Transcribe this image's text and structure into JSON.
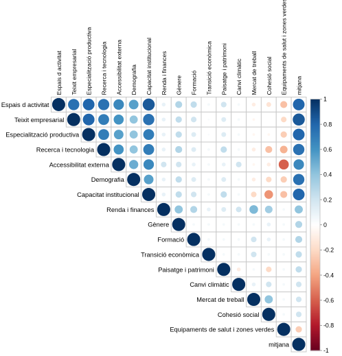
{
  "chart_data": {
    "type": "correlation-matrix",
    "layout": "upper-triangle",
    "glyph": "circle",
    "variables": [
      "Espais d activitat",
      "Teixit empresarial",
      "Especialització productiva",
      "Recerca i tecnologia",
      "Accessibilitat externa",
      "Demografia",
      "Capacitat institucional",
      "Renda i finances",
      "Gènere",
      "Formació",
      "Transició econòmica",
      "Paisatge i patrimoni",
      "Canvi climàtic",
      "Mercat de treball",
      "Cohesió social",
      "Equipaments de salut i zones verdes",
      "mitjana"
    ],
    "matrix": [
      [
        1.0,
        0.75,
        0.8,
        0.75,
        0.65,
        0.55,
        0.85,
        0.1,
        0.3,
        0.25,
        0.05,
        0.2,
        0.05,
        -0.1,
        -0.15,
        -0.3,
        0.8
      ],
      [
        null,
        1.0,
        0.8,
        0.7,
        0.6,
        0.4,
        0.75,
        0.1,
        0.25,
        0.2,
        0.03,
        0.15,
        0.05,
        -0.05,
        0.0,
        -0.2,
        0.85
      ],
      [
        null,
        null,
        1.0,
        0.7,
        0.55,
        0.4,
        0.7,
        0.1,
        0.25,
        0.15,
        0.03,
        0.15,
        0.05,
        -0.05,
        -0.05,
        -0.25,
        0.8
      ],
      [
        null,
        null,
        null,
        1.0,
        0.6,
        0.4,
        0.7,
        0.1,
        0.3,
        0.15,
        0.05,
        0.25,
        0.05,
        -0.1,
        -0.3,
        -0.35,
        0.75
      ],
      [
        null,
        null,
        null,
        null,
        1.0,
        0.5,
        0.65,
        0.2,
        0.2,
        0.1,
        0.05,
        0.1,
        0.2,
        -0.05,
        -0.1,
        -0.6,
        0.65
      ],
      [
        null,
        null,
        null,
        null,
        null,
        1.0,
        0.55,
        0.1,
        0.25,
        0.15,
        0.05,
        0.15,
        0.05,
        -0.1,
        -0.2,
        -0.25,
        0.75
      ],
      [
        null,
        null,
        null,
        null,
        null,
        null,
        1.0,
        0.1,
        0.25,
        0.2,
        0.05,
        0.25,
        0.05,
        -0.2,
        -0.45,
        -0.3,
        0.8
      ],
      [
        null,
        null,
        null,
        null,
        null,
        null,
        null,
        1.0,
        0.4,
        0.3,
        0.1,
        0.15,
        0.2,
        0.45,
        0.35,
        0.05,
        0.4
      ],
      [
        null,
        null,
        null,
        null,
        null,
        null,
        null,
        null,
        1.0,
        0.05,
        0.05,
        0.05,
        0.05,
        0.05,
        0.1,
        0.05,
        0.3
      ],
      [
        null,
        null,
        null,
        null,
        null,
        null,
        null,
        null,
        null,
        1.0,
        0.05,
        0.05,
        0.05,
        0.2,
        0.1,
        0.05,
        0.3
      ],
      [
        null,
        null,
        null,
        null,
        null,
        null,
        null,
        null,
        null,
        null,
        1.0,
        0.05,
        0.05,
        0.2,
        0.05,
        0.05,
        0.25
      ],
      [
        null,
        null,
        null,
        null,
        null,
        null,
        null,
        null,
        null,
        null,
        null,
        1.0,
        -0.1,
        0.05,
        -0.2,
        0.05,
        0.25
      ],
      [
        null,
        null,
        null,
        null,
        null,
        null,
        null,
        null,
        null,
        null,
        null,
        null,
        1.0,
        0.1,
        0.2,
        0.05,
        0.2
      ],
      [
        null,
        null,
        null,
        null,
        null,
        null,
        null,
        null,
        null,
        null,
        null,
        null,
        null,
        1.0,
        0.4,
        0.05,
        0.2
      ],
      [
        null,
        null,
        null,
        null,
        null,
        null,
        null,
        null,
        null,
        null,
        null,
        null,
        null,
        null,
        1.0,
        0.05,
        0.2
      ],
      [
        null,
        null,
        null,
        null,
        null,
        null,
        null,
        null,
        null,
        null,
        null,
        null,
        null,
        null,
        null,
        1.0,
        -0.25
      ],
      [
        null,
        null,
        null,
        null,
        null,
        null,
        null,
        null,
        null,
        null,
        null,
        null,
        null,
        null,
        null,
        null,
        1.0
      ]
    ],
    "color_scale": {
      "min": -1,
      "max": 1,
      "ticks": [
        -1,
        -0.8,
        -0.6,
        -0.4,
        -0.2,
        0,
        0.2,
        0.4,
        0.6,
        0.8,
        1
      ],
      "tick_labels": [
        "-1",
        "-0.8",
        "-0.6",
        "-0.4",
        "-0.2",
        "0",
        "0.2",
        "0.4",
        "0.6",
        "0.8",
        "1"
      ],
      "colors": [
        "#67001f",
        "#b2182b",
        "#d6604d",
        "#f4a582",
        "#fddbc7",
        "#ffffff",
        "#d1e5f0",
        "#92c5de",
        "#4393c3",
        "#2166ac",
        "#053061"
      ]
    }
  }
}
